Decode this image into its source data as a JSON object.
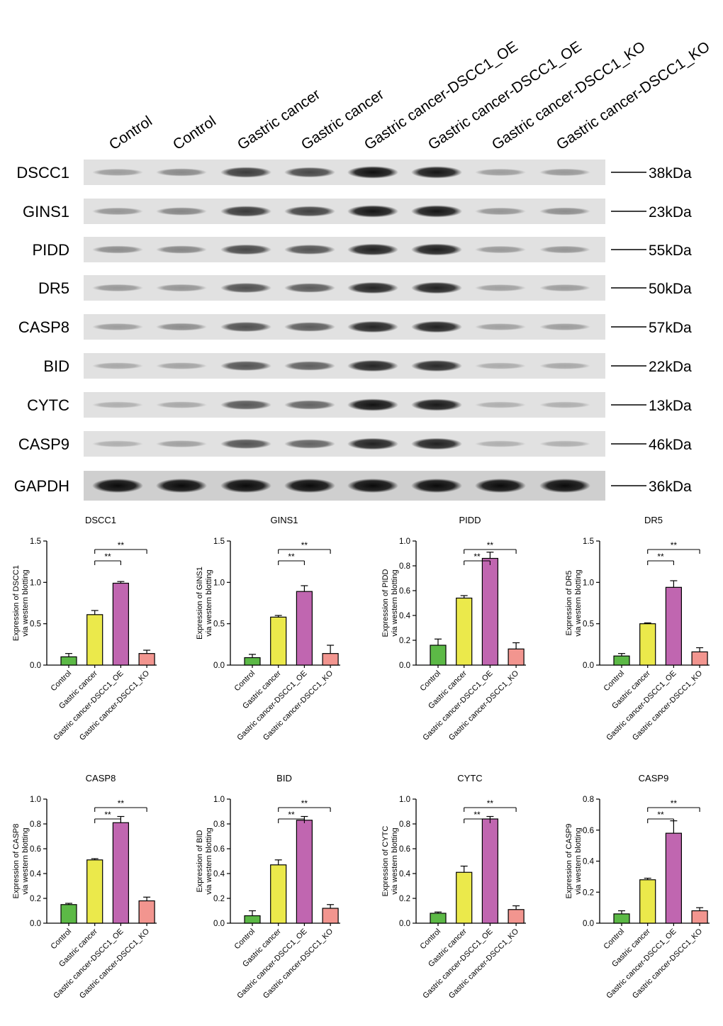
{
  "blot": {
    "lanes": [
      "Control",
      "Control",
      "Gastric cancer",
      "Gastric cancer",
      "Gastric cancer-DSCC1_OE",
      "Gastric cancer-DSCC1_OE",
      "Gastric cancer-DSCC1_KO",
      "Gastric cancer-DSCC1_KO"
    ],
    "rows": [
      {
        "protein": "DSCC1",
        "weight": "38kDa",
        "intensity": [
          0.22,
          0.32,
          0.72,
          0.66,
          0.95,
          0.92,
          0.22,
          0.24
        ]
      },
      {
        "protein": "GINS1",
        "weight": "23kDa",
        "intensity": [
          0.26,
          0.34,
          0.74,
          0.7,
          0.93,
          0.92,
          0.26,
          0.3
        ]
      },
      {
        "protein": "PIDD",
        "weight": "55kDa",
        "intensity": [
          0.3,
          0.34,
          0.66,
          0.6,
          0.86,
          0.88,
          0.24,
          0.26
        ]
      },
      {
        "protein": "DR5",
        "weight": "50kDa",
        "intensity": [
          0.24,
          0.26,
          0.62,
          0.56,
          0.84,
          0.86,
          0.2,
          0.22
        ]
      },
      {
        "protein": "CASP8",
        "weight": "57kDa",
        "intensity": [
          0.22,
          0.3,
          0.62,
          0.56,
          0.84,
          0.86,
          0.2,
          0.22
        ]
      },
      {
        "protein": "BID",
        "weight": "22kDa",
        "intensity": [
          0.16,
          0.18,
          0.6,
          0.54,
          0.84,
          0.82,
          0.14,
          0.16
        ]
      },
      {
        "protein": "CYTC",
        "weight": "13kDa",
        "intensity": [
          0.12,
          0.16,
          0.58,
          0.52,
          0.94,
          0.9,
          0.12,
          0.12
        ]
      },
      {
        "protein": "CASP9",
        "weight": "46kDa",
        "intensity": [
          0.12,
          0.2,
          0.6,
          0.52,
          0.86,
          0.86,
          0.12,
          0.12
        ]
      },
      {
        "protein": "GAPDH",
        "weight": "36kDa",
        "intensity": [
          1,
          1,
          1,
          1,
          1,
          1,
          1,
          1
        ]
      }
    ]
  },
  "colors": {
    "Control": "#5cb946",
    "Gastric cancer": "#ebe94b",
    "Gastric cancer-DSCC1_OE": "#c066b0",
    "Gastric cancer-DSCC1_KO": "#f2958f"
  },
  "chart_data": [
    {
      "type": "bar",
      "title": "DSCC1",
      "ylabel": "Expression of DSCC1\nvia western blotting",
      "categories": [
        "Control",
        "Gastric cancer",
        "Gastric cancer-DSCC1_OE",
        "Gastric cancer-DSCC1_KO"
      ],
      "values": [
        0.1,
        0.61,
        0.99,
        0.14
      ],
      "errors": [
        0.04,
        0.05,
        0.02,
        0.04
      ],
      "ylim": [
        0,
        1.5
      ],
      "yticks": [
        "0.0",
        "0.5",
        "1.0",
        "1.5"
      ],
      "significance": [
        {
          "from": 1,
          "to": 2,
          "label": "**"
        },
        {
          "from": 1,
          "to": 3,
          "label": "**"
        }
      ]
    },
    {
      "type": "bar",
      "title": "GINS1",
      "ylabel": "Expression of GINS1\nvia western blotting",
      "categories": [
        "Control",
        "Gastric cancer",
        "Gastric cancer-DSCC1_OE",
        "Gastric cancer-DSCC1_KO"
      ],
      "values": [
        0.09,
        0.58,
        0.89,
        0.14
      ],
      "errors": [
        0.04,
        0.02,
        0.07,
        0.1
      ],
      "ylim": [
        0,
        1.5
      ],
      "yticks": [
        "0.0",
        "0.5",
        "1.0",
        "1.5"
      ],
      "significance": [
        {
          "from": 1,
          "to": 2,
          "label": "**"
        },
        {
          "from": 1,
          "to": 3,
          "label": "**"
        }
      ]
    },
    {
      "type": "bar",
      "title": "PIDD",
      "ylabel": "Expression of PIDD\nvia western blotting",
      "categories": [
        "Control",
        "Gastric cancer",
        "Gastric cancer-DSCC1_OE",
        "Gastric cancer-DSCC1_KO"
      ],
      "values": [
        0.16,
        0.54,
        0.86,
        0.13
      ],
      "errors": [
        0.05,
        0.02,
        0.05,
        0.05
      ],
      "ylim": [
        0,
        1.0
      ],
      "yticks": [
        "0.0",
        "0.2",
        "0.4",
        "0.6",
        "0.8",
        "1.0"
      ],
      "significance": [
        {
          "from": 1,
          "to": 2,
          "label": "**"
        },
        {
          "from": 1,
          "to": 3,
          "label": "**"
        }
      ]
    },
    {
      "type": "bar",
      "title": "DR5",
      "ylabel": "Expression of DR5\nvia western blotting",
      "categories": [
        "Control",
        "Gastric cancer",
        "Gastric cancer-DSCC1_OE",
        "Gastric cancer-DSCC1_KO"
      ],
      "values": [
        0.11,
        0.5,
        0.94,
        0.16
      ],
      "errors": [
        0.03,
        0.01,
        0.08,
        0.05
      ],
      "ylim": [
        0,
        1.5
      ],
      "yticks": [
        "0.0",
        "0.5",
        "1.0",
        "1.5"
      ],
      "significance": [
        {
          "from": 1,
          "to": 2,
          "label": "**"
        },
        {
          "from": 1,
          "to": 3,
          "label": "**"
        }
      ]
    },
    {
      "type": "bar",
      "title": "CASP8",
      "ylabel": "Expression of CASP8\nvia western blotting",
      "categories": [
        "Control",
        "Gastric cancer",
        "Gastric cancer-DSCC1_OE",
        "Gastric cancer-DSCC1_KO"
      ],
      "values": [
        0.15,
        0.51,
        0.81,
        0.18
      ],
      "errors": [
        0.01,
        0.01,
        0.05,
        0.03
      ],
      "ylim": [
        0,
        1.0
      ],
      "yticks": [
        "0.0",
        "0.2",
        "0.4",
        "0.6",
        "0.8",
        "1.0"
      ],
      "significance": [
        {
          "from": 1,
          "to": 2,
          "label": "**"
        },
        {
          "from": 1,
          "to": 3,
          "label": "**"
        }
      ]
    },
    {
      "type": "bar",
      "title": "BID",
      "ylabel": "Expression of BID\nvia western blotting",
      "categories": [
        "Control",
        "Gastric cancer",
        "Gastric cancer-DSCC1_OE",
        "Gastric cancer-DSCC1_KO"
      ],
      "values": [
        0.06,
        0.47,
        0.83,
        0.12
      ],
      "errors": [
        0.04,
        0.04,
        0.03,
        0.03
      ],
      "ylim": [
        0,
        1.0
      ],
      "yticks": [
        "0.0",
        "0.2",
        "0.4",
        "0.6",
        "0.8",
        "1.0"
      ],
      "significance": [
        {
          "from": 1,
          "to": 2,
          "label": "**"
        },
        {
          "from": 1,
          "to": 3,
          "label": "**"
        }
      ]
    },
    {
      "type": "bar",
      "title": "CYTC",
      "ylabel": "Expression of CYTC\nvia western blotting",
      "categories": [
        "Control",
        "Gastric cancer",
        "Gastric cancer-DSCC1_OE",
        "Gastric cancer-DSCC1_KO"
      ],
      "values": [
        0.08,
        0.41,
        0.84,
        0.11
      ],
      "errors": [
        0.01,
        0.05,
        0.02,
        0.03
      ],
      "ylim": [
        0,
        1.0
      ],
      "yticks": [
        "0.0",
        "0.2",
        "0.4",
        "0.6",
        "0.8",
        "1.0"
      ],
      "significance": [
        {
          "from": 1,
          "to": 2,
          "label": "**"
        },
        {
          "from": 1,
          "to": 3,
          "label": "**"
        }
      ]
    },
    {
      "type": "bar",
      "title": "CASP9",
      "ylabel": "Expression of CASP9\nvia western blotting",
      "categories": [
        "Control",
        "Gastric cancer",
        "Gastric cancer-DSCC1_OE",
        "Gastric cancer-DSCC1_KO"
      ],
      "values": [
        0.06,
        0.28,
        0.58,
        0.08
      ],
      "errors": [
        0.02,
        0.01,
        0.08,
        0.02
      ],
      "ylim": [
        0,
        0.8
      ],
      "yticks": [
        "0.0",
        "0.2",
        "0.4",
        "0.6",
        "0.8"
      ],
      "significance": [
        {
          "from": 1,
          "to": 2,
          "label": "**"
        },
        {
          "from": 1,
          "to": 3,
          "label": "**"
        }
      ]
    }
  ]
}
